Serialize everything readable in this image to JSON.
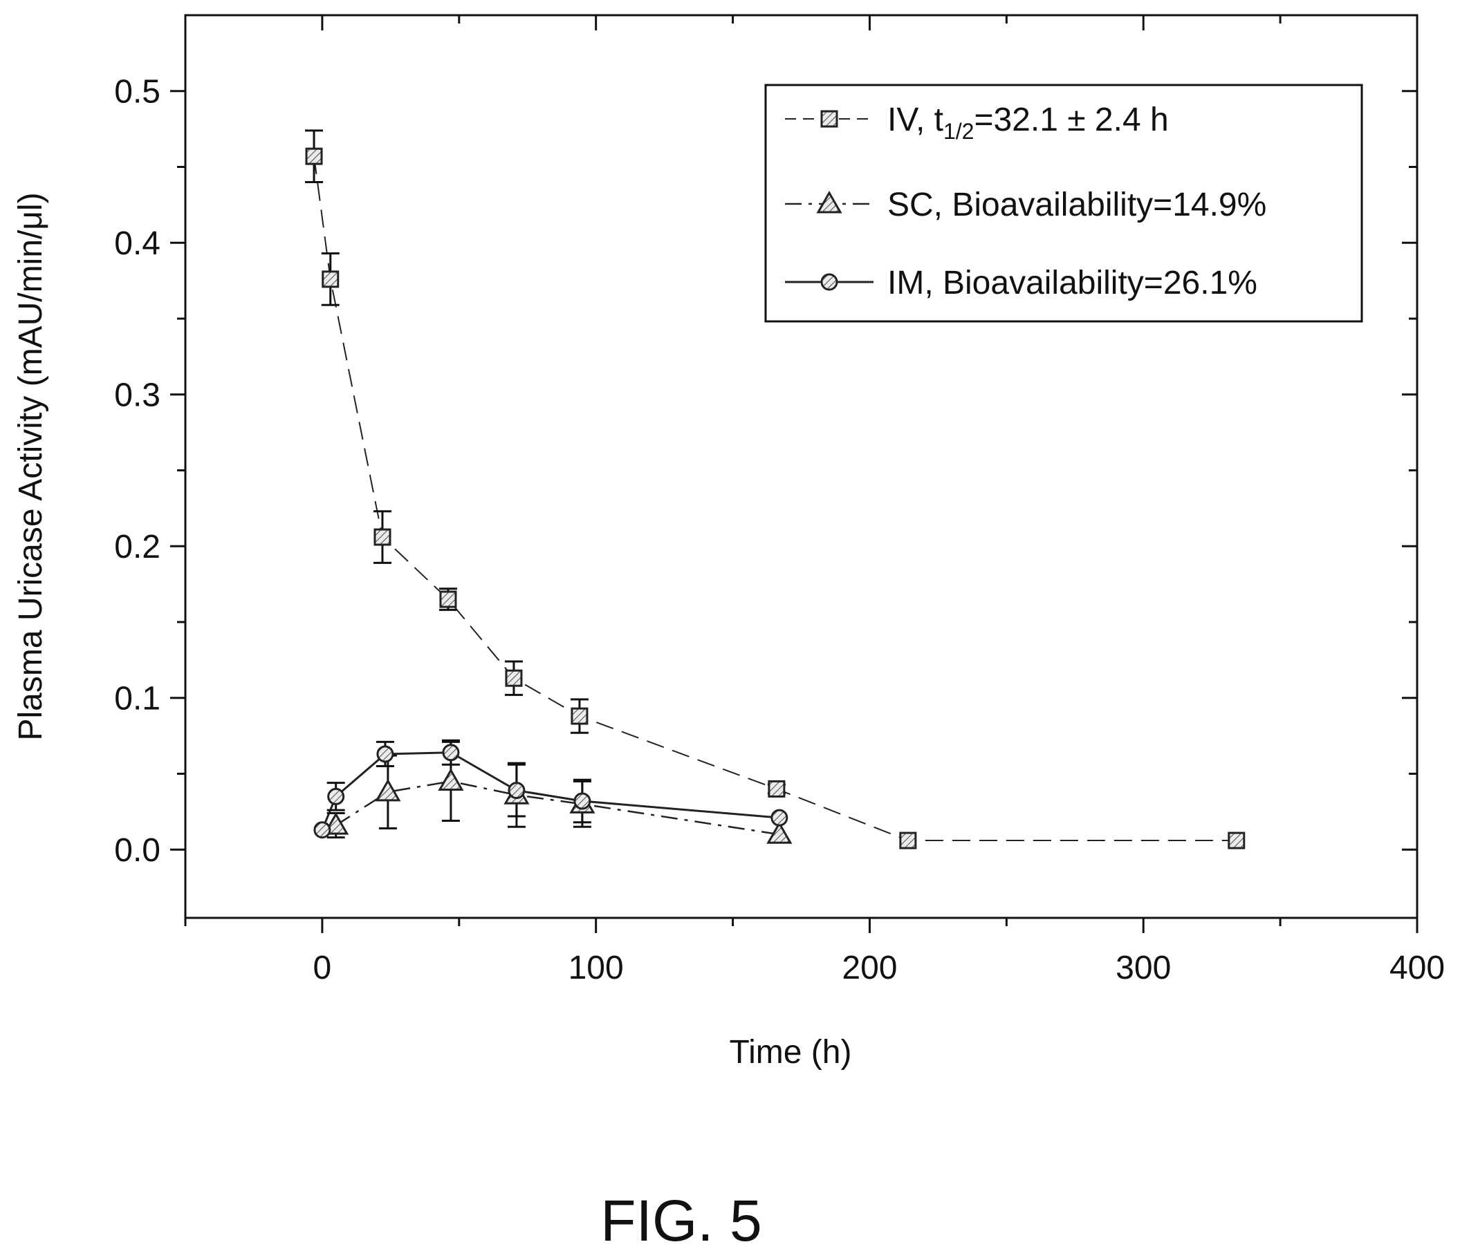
{
  "chart_data": {
    "type": "scatter",
    "xlabel": "Time (h)",
    "ylabel": "Plasma Uricase Activity (mAU/min/μl)",
    "xlim": [
      -50,
      400
    ],
    "ylim": [
      -0.045,
      0.55
    ],
    "x_ticks": [
      0,
      100,
      200,
      300,
      400
    ],
    "y_ticks": [
      0.0,
      0.1,
      0.2,
      0.3,
      0.4,
      0.5
    ],
    "x_tick_labels": [
      "0",
      "100",
      "200",
      "300",
      "400"
    ],
    "y_tick_labels": [
      "0.0",
      "0.1",
      "0.2",
      "0.3",
      "0.4",
      "0.5"
    ],
    "grid": false,
    "legend_position": "top-right",
    "series": [
      {
        "name": "IV, t1/2=32.1 ± 2.4 h",
        "legend_parts": {
          "prefix": "IV, t",
          "sub": "1/2",
          "suffix": "=32.1 ± 2.4 h"
        },
        "marker": "square",
        "line": "dashed",
        "x": [
          -3,
          3,
          22,
          46,
          70,
          94,
          166,
          214,
          334
        ],
        "y": [
          0.457,
          0.376,
          0.206,
          0.165,
          0.113,
          0.088,
          0.04,
          0.006,
          0.006
        ],
        "err": [
          0.017,
          0.017,
          0.017,
          0.007,
          0.011,
          0.011,
          0.003,
          0.0,
          0.0
        ]
      },
      {
        "name": "SC, Bioavailability=14.9%",
        "marker": "triangle",
        "line": "dashdot",
        "x": [
          5,
          24,
          47,
          71,
          95,
          167
        ],
        "y": [
          0.016,
          0.038,
          0.045,
          0.036,
          0.03,
          0.01
        ],
        "err": [
          0.008,
          0.024,
          0.026,
          0.021,
          0.015,
          0.0
        ]
      },
      {
        "name": "IM, Bioavailability=26.1%",
        "marker": "circle",
        "line": "solid",
        "x": [
          0,
          5,
          23,
          47,
          71,
          95,
          167
        ],
        "y": [
          0.013,
          0.035,
          0.063,
          0.064,
          0.039,
          0.032,
          0.021
        ],
        "err": [
          0.0,
          0.009,
          0.008,
          0.008,
          0.017,
          0.014,
          0.0
        ]
      }
    ]
  },
  "caption": "FIG. 5"
}
